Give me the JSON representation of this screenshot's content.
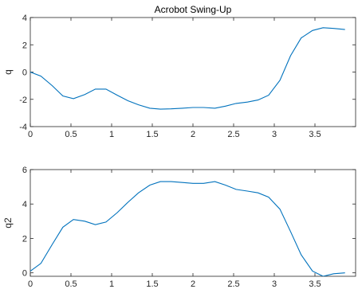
{
  "chart_data": [
    {
      "type": "line",
      "title": "Acrobot Swing-Up",
      "xlabel": "",
      "ylabel": "q",
      "xlim": [
        0,
        4
      ],
      "ylim": [
        -4,
        4
      ],
      "xticks": [
        0,
        0.5,
        1,
        1.5,
        2,
        2.5,
        3,
        3.5
      ],
      "yticks": [
        -4,
        -2,
        0,
        2,
        4
      ],
      "x_tick_labels": [
        "0",
        "0.5",
        "1",
        "1.5",
        "2",
        "2.5",
        "3",
        "3.5"
      ],
      "y_tick_labels": [
        "-4",
        "-2",
        "0",
        "2",
        "4"
      ],
      "grid": false,
      "series": [
        {
          "color": "#0072bd",
          "x": [
            0,
            0.13,
            0.27,
            0.4,
            0.53,
            0.67,
            0.8,
            0.93,
            1.07,
            1.2,
            1.33,
            1.47,
            1.6,
            1.73,
            1.87,
            2.0,
            2.13,
            2.27,
            2.4,
            2.53,
            2.67,
            2.8,
            2.93,
            3.07,
            3.2,
            3.33,
            3.47,
            3.6,
            3.73,
            3.87
          ],
          "values": [
            0,
            -0.3,
            -1.0,
            -1.75,
            -1.95,
            -1.65,
            -1.25,
            -1.25,
            -1.7,
            -2.1,
            -2.4,
            -2.65,
            -2.72,
            -2.7,
            -2.65,
            -2.6,
            -2.6,
            -2.65,
            -2.5,
            -2.3,
            -2.2,
            -2.05,
            -1.7,
            -0.6,
            1.2,
            2.5,
            3.05,
            3.25,
            3.2,
            3.12
          ]
        }
      ]
    },
    {
      "type": "line",
      "title": "",
      "xlabel": "",
      "ylabel": "q2",
      "xlim": [
        0,
        4
      ],
      "ylim": [
        -0.2,
        6
      ],
      "xticks": [
        0,
        0.5,
        1,
        1.5,
        2,
        2.5,
        3,
        3.5
      ],
      "yticks": [
        0,
        2,
        4,
        6
      ],
      "x_tick_labels": [
        "0",
        "0.5",
        "1",
        "1.5",
        "2",
        "2.5",
        "3",
        "3.5"
      ],
      "y_tick_labels": [
        "0",
        "2",
        "4",
        "6"
      ],
      "grid": false,
      "series": [
        {
          "color": "#0072bd",
          "x": [
            0,
            0.13,
            0.27,
            0.4,
            0.53,
            0.67,
            0.8,
            0.93,
            1.07,
            1.2,
            1.33,
            1.47,
            1.6,
            1.73,
            1.87,
            2.0,
            2.13,
            2.27,
            2.4,
            2.53,
            2.67,
            2.8,
            2.93,
            3.07,
            3.2,
            3.33,
            3.47,
            3.6,
            3.73,
            3.87
          ],
          "values": [
            0.1,
            0.55,
            1.65,
            2.65,
            3.1,
            3.0,
            2.8,
            2.95,
            3.5,
            4.1,
            4.65,
            5.1,
            5.3,
            5.3,
            5.25,
            5.2,
            5.2,
            5.3,
            5.1,
            4.85,
            4.75,
            4.65,
            4.4,
            3.7,
            2.4,
            1.05,
            0.1,
            -0.2,
            -0.05,
            0.0
          ]
        }
      ]
    }
  ]
}
